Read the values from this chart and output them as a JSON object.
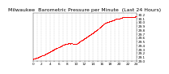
{
  "title": "Milwaukee  Barometric Pressure per Minute  (Last 24 Hours)",
  "bg_color": "#ffffff",
  "plot_bg_color": "#ffffff",
  "line_color": "#ff0000",
  "grid_color": "#bbbbbb",
  "ylim": [
    29.0,
    30.25
  ],
  "yticks": [
    29.0,
    29.1,
    29.2,
    29.3,
    29.4,
    29.5,
    29.6,
    29.7,
    29.8,
    29.9,
    30.0,
    30.1,
    30.2
  ],
  "num_points": 1440,
  "x_start": 0,
  "x_end": 1440,
  "xtick_positions": [
    0,
    60,
    120,
    180,
    240,
    300,
    360,
    420,
    480,
    540,
    600,
    660,
    720,
    780,
    840,
    900,
    960,
    1020,
    1080,
    1140,
    1200,
    1260,
    1320,
    1380,
    1440
  ],
  "title_fontsize": 4.5,
  "tick_fontsize": 3.0,
  "marker_size": 0.5
}
